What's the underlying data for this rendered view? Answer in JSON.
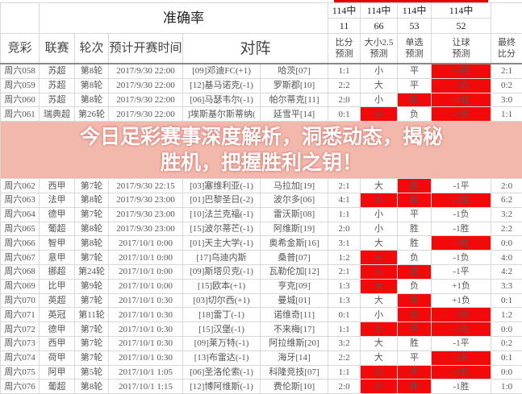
{
  "header": {
    "accuracy_label": "准确率",
    "accuracy": [
      {
        "top": "114中",
        "bottom": "11"
      },
      {
        "top": "114中",
        "bottom": "66"
      },
      {
        "top": "114中",
        "bottom": "53"
      },
      {
        "top": "114中",
        "bottom": "52"
      }
    ],
    "columns": [
      "竞彩",
      "联赛",
      "轮次",
      "预计开赛时间",
      "对阵",
      "比分\n预测",
      "大小2.5\n预测",
      "单选\n预测",
      "让球\n预测",
      "最终\n比分"
    ]
  },
  "colors": {
    "highlight": "#f20a0a",
    "overlay": "#f8cdc3"
  },
  "rows": [
    {
      "id": "周六058",
      "league": "苏超",
      "round": "第8轮",
      "time": "2017/9/30 22:00",
      "home": "[09]邓迪FC(+1)",
      "away": "哈茨[07]",
      "score_pred": "1:1",
      "ou": "小",
      "single": "平",
      "handicap": "+1胜",
      "final": "2:1",
      "red": [
        "handicap"
      ]
    },
    {
      "id": "周六059",
      "league": "苏超",
      "round": "第8轮",
      "time": "2017/9/30 22:00",
      "home": "[12]基马诺克(-1)",
      "away": "罗斯郡[10]",
      "score_pred": "2:2",
      "ou": "大",
      "single": "平",
      "handicap": "-1负",
      "final": "0:2",
      "red": [
        "handicap"
      ]
    },
    {
      "id": "周六060",
      "league": "苏超",
      "round": "第8轮",
      "time": "2017/9/30 22:00",
      "home": "[06]马瑟韦尔(-1)",
      "away": "帕尔蒂克[11]",
      "score_pred": "2:0",
      "ou": "小",
      "single": "胜",
      "handicap": "-1胜",
      "final": "3:0",
      "red": [
        "single",
        "handicap"
      ]
    },
    {
      "id": "周六061",
      "league": "瑞典超",
      "round": "第26轮",
      "time": "2017/9/30 22:00",
      "home": "]埃斯基尔斯蒂纳(",
      "away": "延雪平[14]",
      "score_pred": "0:1",
      "ou": "小",
      "single": "负",
      "handicap": "-1负",
      "final": "1:1",
      "red": [
        "ou",
        "handicap"
      ]
    },
    {
      "id": "周六062",
      "league": "西甲",
      "round": "第7轮",
      "time": "2017/9/30 22:15",
      "home": "[03]塞维利亚(-1)",
      "away": "马拉加[19]",
      "score_pred": "2:1",
      "ou": "大",
      "single": "胜",
      "handicap": "-1平",
      "final": "2:0",
      "red": [
        "single"
      ]
    },
    {
      "id": "周六063",
      "league": "法甲",
      "round": "第8轮",
      "time": "2017/9/30 23:00",
      "home": "[01]巴黎圣日(-2)",
      "away": "波尔多[06]",
      "score_pred": "4:1",
      "ou": "大",
      "single": "胜",
      "handicap": "-2胜",
      "final": "6:2",
      "red": [
        "ou",
        "single",
        "handicap"
      ]
    },
    {
      "id": "周六064",
      "league": "德甲",
      "round": "第7轮",
      "time": "2017/9/30 23:00",
      "home": "[10]法兰克福(-1)",
      "away": "雷沃斯[08]",
      "score_pred": "1:1",
      "ou": "小",
      "single": "平",
      "handicap": "-1负",
      "final": "3:2",
      "red": []
    },
    {
      "id": "周六065",
      "league": "葡超",
      "round": "第8轮",
      "time": "2017/9/30 23:00",
      "home": "[15]波尔蒂芒(-1)",
      "away": "阿维斯[19]",
      "score_pred": "2:0",
      "ou": "小",
      "single": "胜",
      "handicap": "-1胜",
      "final": "2:2",
      "red": []
    },
    {
      "id": "周六066",
      "league": "智甲",
      "round": "第8轮",
      "time": "2017/10/1 0:00",
      "home": "[01]天主大学(-1)",
      "away": "奥希金斯[16]",
      "score_pred": "3:1",
      "ou": "大",
      "single": "胜",
      "handicap": "-1胜",
      "final": "0:0",
      "red": [
        "handicap"
      ]
    },
    {
      "id": "周六067",
      "league": "意甲",
      "round": "第7轮",
      "time": "2017/10/1 0:00",
      "home": "[17]乌迪内斯",
      "away": "桑普[07]",
      "score_pred": "1:2",
      "ou": "大",
      "single": "负",
      "handicap": "-1负",
      "final": "4:0",
      "red": [
        "ou"
      ]
    },
    {
      "id": "周六068",
      "league": "挪超",
      "round": "第24轮",
      "time": "2017/10/1 0:00",
      "home": "[09]斯塔贝克(-1)",
      "away": "瓦勒伦加[12]",
      "score_pred": "2:1",
      "ou": "大",
      "single": "胜",
      "handicap": "-1平",
      "final": "4:2",
      "red": [
        "ou",
        "single"
      ]
    },
    {
      "id": "周六069",
      "league": "比甲",
      "round": "第9轮",
      "time": "2017/10/1 0:00",
      "home": "[15]欧本(+1)",
      "away": "亨克[09]",
      "score_pred": "1:3",
      "ou": "大",
      "single": "负",
      "handicap": "+1负",
      "final": "3:3",
      "red": [
        "ou"
      ]
    },
    {
      "id": "周六070",
      "league": "英超",
      "round": "第7轮",
      "time": "2017/10/1 0:30",
      "home": "[03]切尔西(+1)",
      "away": "曼城[01]",
      "score_pred": "1:3",
      "ou": "大",
      "single": "负",
      "handicap": "+1负",
      "final": "0:1",
      "red": [
        "single"
      ]
    },
    {
      "id": "周六071",
      "league": "英冠",
      "round": "第11轮",
      "time": "2017/10/1 0:30",
      "home": "[18]雷丁(-1)",
      "away": "诺维奇[11]",
      "score_pred": "0:1",
      "ou": "小",
      "single": "负",
      "handicap": "-1负",
      "final": "1:2",
      "red": [
        "single",
        "handicap"
      ]
    },
    {
      "id": "周六072",
      "league": "德甲",
      "round": "第7轮",
      "time": "2017/10/1 0:30",
      "home": "[15]汉堡(-1)",
      "away": "不来梅[17]",
      "score_pred": "1:1",
      "ou": "小",
      "single": "平",
      "handicap": "-1负",
      "final": "0:0",
      "red": [
        "ou",
        "single",
        "handicap"
      ]
    },
    {
      "id": "周六073",
      "league": "西甲",
      "round": "第7轮",
      "time": "2017/10/1 0:30",
      "home": "[09]莱万特(-1)",
      "away": "阿拉维斯[20]",
      "score_pred": "3:2",
      "ou": "大",
      "single": "胜",
      "handicap": "-1平",
      "final": "0:2",
      "red": []
    },
    {
      "id": "周六074",
      "league": "荷甲",
      "round": "第7轮",
      "time": "2017/10/1 0:30",
      "home": "[13]布雷达(-1)",
      "away": "海牙[14]",
      "score_pred": "2:2",
      "ou": "大",
      "single": "平",
      "handicap": "-1负",
      "final": "0:1",
      "red": [
        "handicap"
      ]
    },
    {
      "id": "周六075",
      "league": "阿甲",
      "round": "第5轮",
      "time": "2017/10/1 1:05",
      "home": "[06]圣洛伦索(-1)",
      "away": "科隆竞技[07]",
      "score_pred": "1:1",
      "ou": "小",
      "single": "平",
      "handicap": "-1负",
      "final": "0:0",
      "red": [
        "ou",
        "single",
        "handicap"
      ]
    },
    {
      "id": "周六076",
      "league": "葡超",
      "round": "第8轮",
      "time": "2017/10/1 1:15",
      "home": "[12]博阿维斯(-1)",
      "away": "费伦斯[10]",
      "score_pred": "2:0",
      "ou": "小",
      "single": "胜",
      "handicap": "-1胜",
      "final": "1:0",
      "red": [
        "ou",
        "single"
      ]
    }
  ],
  "overlay": {
    "line1": "今日足彩赛事深度解析，洞悉动态，揭秘",
    "line2": "胜机，把握胜利之钥！"
  }
}
